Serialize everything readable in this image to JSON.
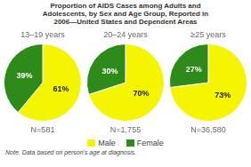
{
  "title": "Proportion of AIDS Cases among Adults and\nAdolescents, by Sex and Age Group, Reported in\n2006—United States and Dependent Areas",
  "legend": "bottom",
  "annotations": [
    "Note. Data based on person's age at diagnosis."
  ],
  "chart_data": [
    {
      "type": "pie",
      "title": "13–19 years",
      "subtitle": "N=581",
      "categories": [
        "Male",
        "Female"
      ],
      "values": [
        61,
        39
      ],
      "value_labels": [
        "61%",
        "39%"
      ],
      "colors": [
        "#f5f500",
        "#2e8b1a"
      ],
      "data_labels": true
    },
    {
      "type": "pie",
      "title": "20–24 years",
      "subtitle": "N=1,755",
      "categories": [
        "Male",
        "Female"
      ],
      "values": [
        70,
        30
      ],
      "value_labels": [
        "70%",
        "30%"
      ],
      "colors": [
        "#f5f500",
        "#2e8b1a"
      ],
      "data_labels": true
    },
    {
      "type": "pie",
      "title": "≥25 years",
      "subtitle": "N=36,580",
      "categories": [
        "Male",
        "Female"
      ],
      "values": [
        73,
        27
      ],
      "value_labels": [
        "73%",
        "27%"
      ],
      "colors": [
        "#f5f500",
        "#2e8b1a"
      ],
      "data_labels": true
    }
  ]
}
